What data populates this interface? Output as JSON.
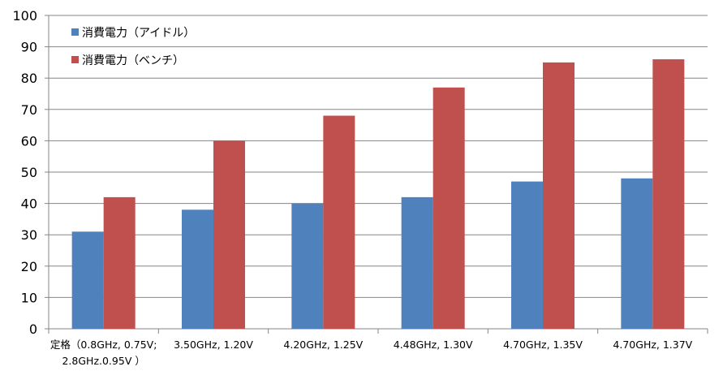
{
  "chart_data": {
    "type": "bar",
    "categories": [
      [
        "定格（0.8GHz, 0.75V;",
        "2.8GHz.0.95V ）"
      ],
      [
        "3.50GHz, 1.20V"
      ],
      [
        "4.20GHz, 1.25V"
      ],
      [
        "4.48GHz, 1.30V"
      ],
      [
        "4.70GHz, 1.35V"
      ],
      [
        "4.70GHz, 1.37V"
      ]
    ],
    "series": [
      {
        "name": "消費電力（アイドル）",
        "color": "#4f81bd",
        "values": [
          31,
          38,
          40,
          42,
          47,
          48
        ]
      },
      {
        "name": "消費電力（ベンチ）",
        "color": "#c0504d",
        "values": [
          42,
          60,
          68,
          77,
          85,
          86
        ]
      }
    ],
    "ylim": [
      0,
      100
    ],
    "yticks": [
      0,
      10,
      20,
      30,
      40,
      50,
      60,
      70,
      80,
      90,
      100
    ],
    "grid": true,
    "legend_position": "top-left",
    "title": "",
    "xlabel": "",
    "ylabel": ""
  }
}
